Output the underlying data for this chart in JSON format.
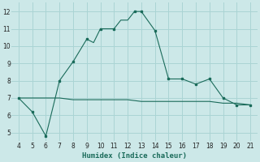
{
  "line1_x": [
    4,
    5,
    6,
    7,
    8,
    9,
    9.5,
    10,
    11,
    11.5,
    12,
    12.5,
    13,
    14,
    15,
    16,
    17,
    18,
    19,
    20,
    21
  ],
  "line1_y": [
    7.0,
    6.2,
    4.8,
    8.0,
    9.1,
    10.4,
    10.2,
    11.0,
    11.0,
    11.5,
    11.5,
    12.0,
    12.0,
    10.9,
    8.1,
    8.1,
    7.8,
    8.1,
    7.0,
    6.6,
    6.6
  ],
  "line2_x": [
    4,
    5,
    6,
    7,
    8,
    9,
    10,
    11,
    12,
    13,
    14,
    15,
    16,
    17,
    18,
    19,
    20,
    21
  ],
  "line2_y": [
    7.0,
    7.0,
    7.0,
    7.0,
    6.9,
    6.9,
    6.9,
    6.9,
    6.9,
    6.8,
    6.8,
    6.8,
    6.8,
    6.8,
    6.8,
    6.7,
    6.7,
    6.6
  ],
  "marker1_x": [
    4,
    5,
    6,
    7,
    8,
    9,
    10,
    11,
    12.5,
    13,
    14,
    15,
    16,
    17,
    18,
    19,
    20,
    21
  ],
  "marker1_y": [
    7.0,
    6.2,
    4.8,
    8.0,
    9.1,
    10.4,
    11.0,
    11.0,
    12.0,
    12.0,
    10.9,
    8.1,
    8.1,
    7.8,
    8.1,
    7.0,
    6.6,
    6.6
  ],
  "line_color": "#1a6b5a",
  "bg_color": "#cce8e8",
  "grid_color": "#aad4d4",
  "xlabel": "Humidex (Indice chaleur)",
  "xlim": [
    3.5,
    21.5
  ],
  "ylim": [
    4.5,
    12.5
  ],
  "xticks": [
    4,
    5,
    6,
    7,
    8,
    9,
    10,
    11,
    12,
    13,
    14,
    15,
    16,
    17,
    18,
    19,
    20,
    21
  ],
  "yticks": [
    5,
    6,
    7,
    8,
    9,
    10,
    11,
    12
  ],
  "xlabel_fontsize": 6.5,
  "tick_fontsize": 5.5
}
